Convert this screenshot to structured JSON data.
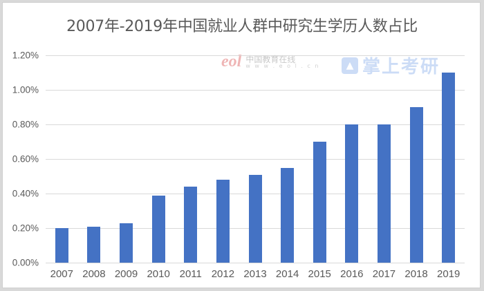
{
  "chart_data": {
    "type": "bar",
    "title": "2007年-2019年中国就业人群中研究生学历人数占比",
    "xlabel": "",
    "ylabel": "",
    "categories": [
      "2007",
      "2008",
      "2009",
      "2010",
      "2011",
      "2012",
      "2013",
      "2014",
      "2015",
      "2016",
      "2017",
      "2018",
      "2019"
    ],
    "values": [
      0.2,
      0.21,
      0.23,
      0.39,
      0.44,
      0.48,
      0.51,
      0.55,
      0.7,
      0.8,
      0.8,
      0.9,
      1.1
    ],
    "value_unit": "%",
    "ylim": [
      0,
      1.2
    ],
    "yticks": [
      "0.00%",
      "0.20%",
      "0.40%",
      "0.60%",
      "0.80%",
      "1.00%",
      "1.20%"
    ],
    "grid": true,
    "legend": null,
    "bar_color": "#4472c4"
  },
  "watermarks": {
    "eol_logo": "eol",
    "eol_name": "中国教育在线",
    "eol_url": "w w w . e o l . c n",
    "kaoyan_icon": "graduation-cap-icon",
    "kaoyan_name": "掌上考研"
  }
}
